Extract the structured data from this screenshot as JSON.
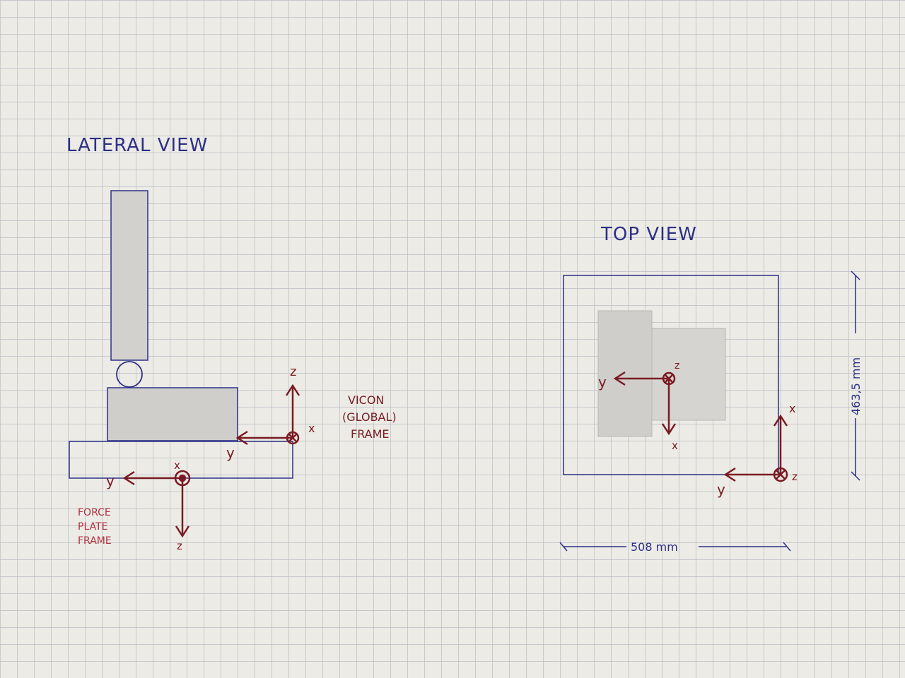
{
  "colors": {
    "paper": "#ecebe6",
    "grid": "#b9bcc0",
    "blue_ink": "#2d2f86",
    "red_ink": "#7a1a22",
    "shade": "#c9c8c4"
  },
  "lateral_view": {
    "title": "LATERAL VIEW",
    "vicon_frame": {
      "label_lines": [
        "VICON",
        "(GLOBAL)",
        "FRAME"
      ],
      "axes": {
        "z": "z",
        "y": "y",
        "x": "x"
      }
    },
    "force_plate_frame": {
      "label_lines": [
        "FORCE",
        "PLATE",
        "FRAME"
      ],
      "axes": {
        "x": "x",
        "y": "y",
        "z": "z"
      }
    }
  },
  "top_view": {
    "title": "TOP VIEW",
    "center_frame": {
      "axes": {
        "z": "z",
        "y": "y",
        "x": "x"
      }
    },
    "corner_frame": {
      "axes": {
        "x": "x",
        "y": "y",
        "z": "z"
      }
    },
    "width_dimension": "508 mm",
    "height_dimension": "463,5 mm"
  }
}
